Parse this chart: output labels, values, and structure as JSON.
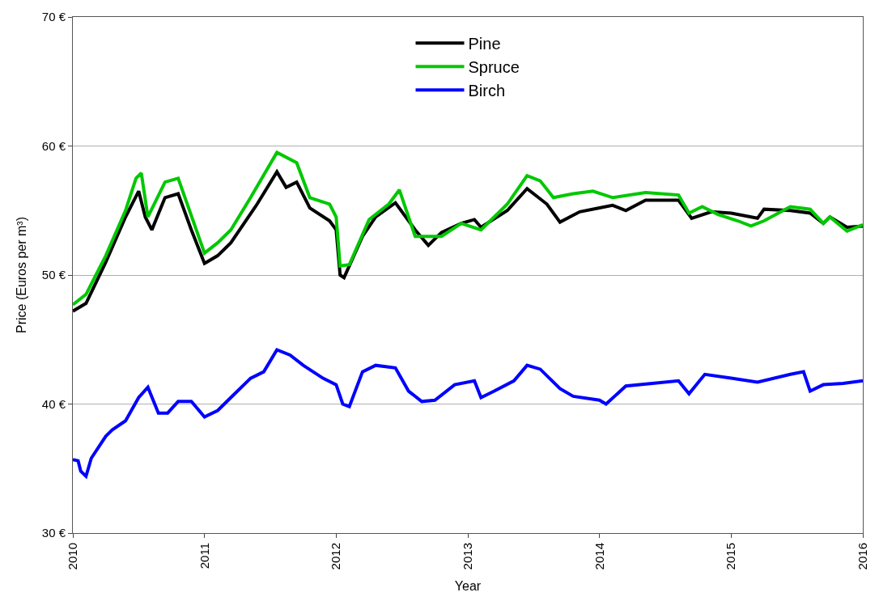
{
  "chart_data": {
    "type": "line",
    "xlabel": "Year",
    "ylabel": "Price (Euros per m³)",
    "xlim": [
      2010,
      2016
    ],
    "xticks": [
      2010,
      2011,
      2012,
      2013,
      2014,
      2015,
      2016
    ],
    "ylim": [
      30,
      70
    ],
    "yticks": [
      {
        "value": 30,
        "label": "30 €"
      },
      {
        "value": 40,
        "label": "40 €"
      },
      {
        "value": 50,
        "label": "50 €"
      },
      {
        "value": 60,
        "label": "60 €"
      },
      {
        "value": 70,
        "label": "70 €"
      }
    ],
    "grid": "y",
    "legend": "top",
    "line_style": "solid",
    "series": [
      {
        "name": "Pine",
        "color": "#000000",
        "x": [
          2010.0,
          2010.1,
          2010.25,
          2010.4,
          2010.5,
          2010.55,
          2010.6,
          2010.7,
          2010.8,
          2010.9,
          2011.0,
          2011.1,
          2011.2,
          2011.4,
          2011.55,
          2011.62,
          2011.7,
          2011.8,
          2011.95,
          2012.0,
          2012.03,
          2012.06,
          2012.2,
          2012.3,
          2012.45,
          2012.6,
          2012.7,
          2012.8,
          2012.95,
          2013.05,
          2013.1,
          2013.3,
          2013.45,
          2013.6,
          2013.7,
          2013.85,
          2014.0,
          2014.1,
          2014.2,
          2014.35,
          2014.6,
          2014.7,
          2014.85,
          2015.0,
          2015.2,
          2015.25,
          2015.45,
          2015.6,
          2015.7,
          2015.75,
          2015.88,
          2016.0
        ],
        "values": [
          47.2,
          47.8,
          51.0,
          54.5,
          56.5,
          54.5,
          53.5,
          56.0,
          56.3,
          53.5,
          50.9,
          51.5,
          52.5,
          55.5,
          58.0,
          56.8,
          57.2,
          55.2,
          54.2,
          53.5,
          50.0,
          49.8,
          53.0,
          54.5,
          55.6,
          53.5,
          52.3,
          53.3,
          54.0,
          54.3,
          53.7,
          55.0,
          56.7,
          55.5,
          54.1,
          54.9,
          55.2,
          55.4,
          55.0,
          55.8,
          55.8,
          54.4,
          54.9,
          54.8,
          54.4,
          55.1,
          55.0,
          54.8,
          54.0,
          54.5,
          53.7,
          53.8
        ]
      },
      {
        "name": "Spruce",
        "color": "#00c800",
        "x": [
          2010.0,
          2010.1,
          2010.25,
          2010.4,
          2010.48,
          2010.52,
          2010.57,
          2010.7,
          2010.8,
          2011.0,
          2011.1,
          2011.2,
          2011.35,
          2011.55,
          2011.7,
          2011.8,
          2011.95,
          2012.0,
          2012.03,
          2012.1,
          2012.25,
          2012.4,
          2012.48,
          2012.6,
          2012.8,
          2012.95,
          2013.1,
          2013.3,
          2013.45,
          2013.55,
          2013.65,
          2013.8,
          2013.95,
          2014.1,
          2014.35,
          2014.6,
          2014.68,
          2014.78,
          2014.9,
          2015.05,
          2015.15,
          2015.25,
          2015.45,
          2015.6,
          2015.7,
          2015.75,
          2015.88,
          2016.0
        ],
        "values": [
          47.7,
          48.5,
          51.5,
          55.0,
          57.5,
          57.9,
          54.5,
          57.2,
          57.5,
          51.7,
          52.5,
          53.5,
          56.0,
          59.5,
          58.7,
          56.0,
          55.5,
          54.5,
          50.7,
          50.8,
          54.3,
          55.5,
          56.6,
          53.0,
          53.0,
          54.0,
          53.5,
          55.5,
          57.7,
          57.3,
          56.0,
          56.3,
          56.5,
          56.0,
          56.4,
          56.2,
          54.8,
          55.3,
          54.7,
          54.2,
          53.8,
          54.2,
          55.3,
          55.1,
          54.0,
          54.5,
          53.4,
          53.9
        ]
      },
      {
        "name": "Birch",
        "color": "#0000ff",
        "x": [
          2010.0,
          2010.04,
          2010.06,
          2010.1,
          2010.14,
          2010.25,
          2010.3,
          2010.4,
          2010.5,
          2010.57,
          2010.65,
          2010.72,
          2010.8,
          2010.9,
          2011.0,
          2011.1,
          2011.2,
          2011.35,
          2011.45,
          2011.55,
          2011.65,
          2011.75,
          2011.9,
          2012.0,
          2012.05,
          2012.1,
          2012.2,
          2012.3,
          2012.45,
          2012.55,
          2012.65,
          2012.75,
          2012.9,
          2013.05,
          2013.1,
          2013.2,
          2013.35,
          2013.45,
          2013.55,
          2013.7,
          2013.8,
          2014.0,
          2014.05,
          2014.2,
          2014.4,
          2014.6,
          2014.68,
          2014.8,
          2015.0,
          2015.2,
          2015.45,
          2015.55,
          2015.6,
          2015.7,
          2015.85,
          2016.0
        ],
        "values": [
          35.7,
          35.6,
          34.8,
          34.4,
          35.8,
          37.5,
          38.0,
          38.7,
          40.5,
          41.3,
          39.3,
          39.3,
          40.2,
          40.2,
          39.0,
          39.5,
          40.5,
          42.0,
          42.5,
          44.2,
          43.8,
          43.0,
          42.0,
          41.5,
          40.0,
          39.8,
          42.5,
          43.0,
          42.8,
          41.0,
          40.2,
          40.3,
          41.5,
          41.8,
          40.5,
          41.0,
          41.8,
          43.0,
          42.7,
          41.2,
          40.6,
          40.3,
          40.0,
          41.4,
          41.6,
          41.8,
          40.8,
          42.3,
          42.0,
          41.7,
          42.3,
          42.5,
          41.0,
          41.5,
          41.6,
          41.8
        ]
      }
    ]
  }
}
